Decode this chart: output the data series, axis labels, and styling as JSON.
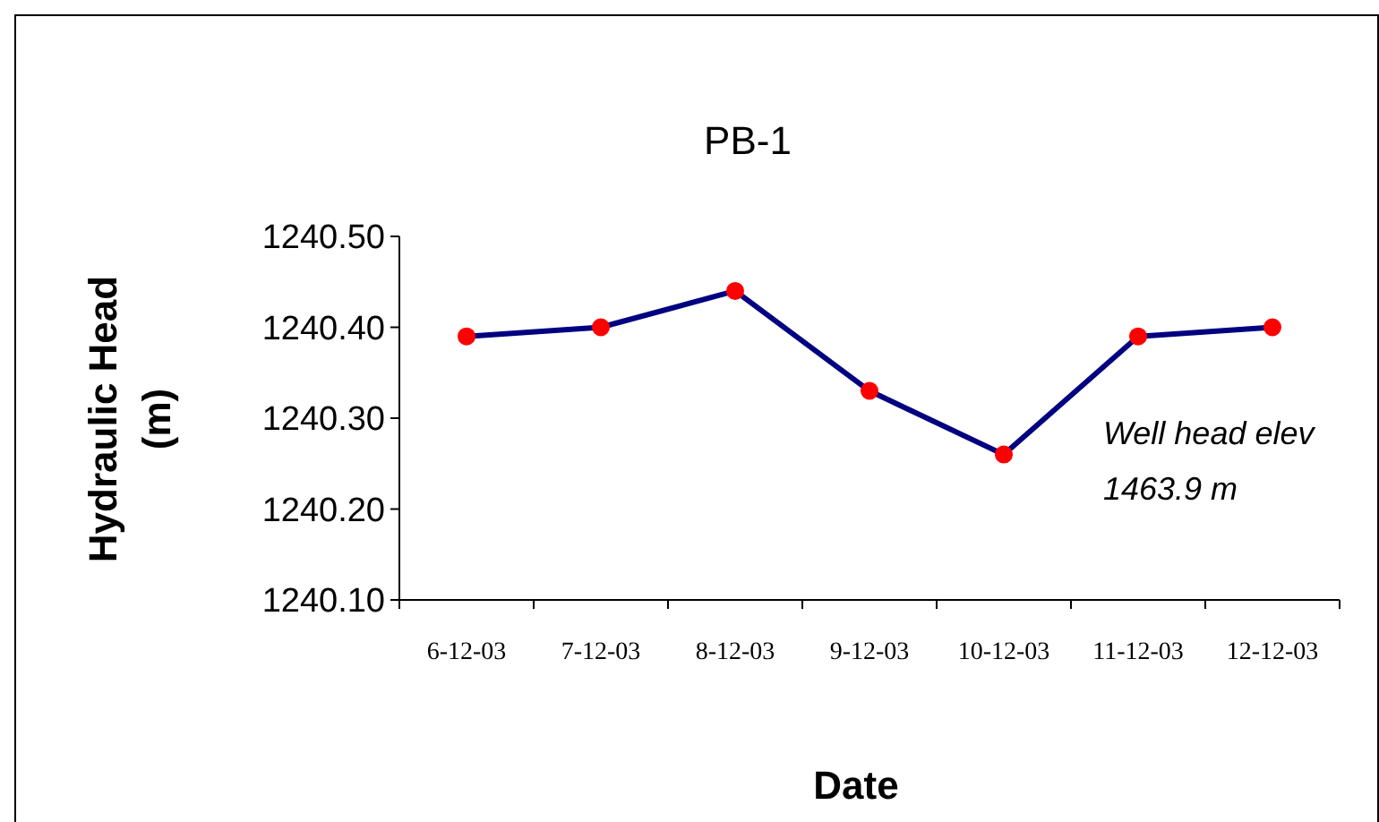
{
  "chart_data": {
    "type": "line",
    "title": "PB-1",
    "xlabel": "Date",
    "ylabel": "Hydraulic Head\n(m)",
    "categories": [
      "6-12-03",
      "7-12-03",
      "8-12-03",
      "9-12-03",
      "10-12-03",
      "11-12-03",
      "12-12-03"
    ],
    "series": [
      {
        "color": "#000080",
        "values": [
          1240.39,
          1240.4,
          1240.44,
          1240.33,
          1240.26,
          1240.39,
          1240.4
        ]
      }
    ],
    "ylim": [
      1240.1,
      1240.5
    ],
    "yticks": [
      {
        "value": 1240.1,
        "label": "1240.10"
      },
      {
        "value": 1240.2,
        "label": "1240.20"
      },
      {
        "value": 1240.3,
        "label": "1240.30"
      },
      {
        "value": 1240.4,
        "label": "1240.40"
      },
      {
        "value": 1240.5,
        "label": "1240.50"
      }
    ],
    "grid": false,
    "marker": "circle",
    "line_style": "solid",
    "annotations": [
      "Well head elev\n1463.9 m"
    ]
  }
}
